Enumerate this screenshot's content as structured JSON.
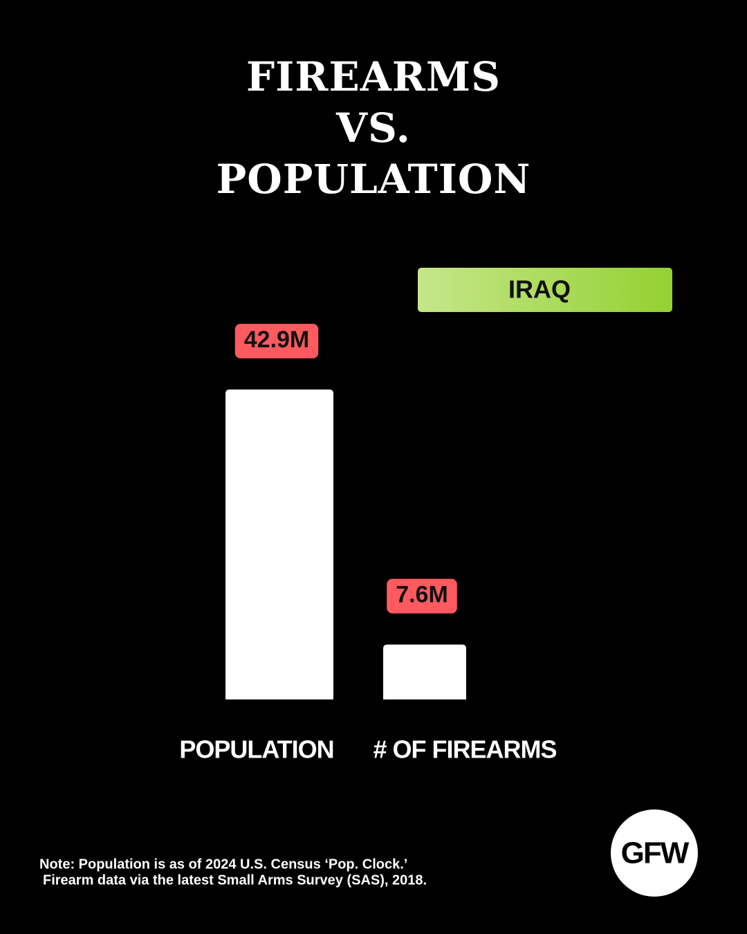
{
  "chart_data": {
    "type": "bar",
    "title": "FIREARMS\nVS.\nPOPULATION",
    "badge": "IRAQ",
    "categories": [
      "POPULATION",
      "# OF FIREARMS"
    ],
    "values": [
      42.9,
      7.6
    ],
    "value_labels": [
      "42.9M",
      "7.6M"
    ],
    "color": "#ffffff",
    "label_color": "#ff5a5f",
    "notes": [
      "Note: Population is as of 2024 U.S. Census ‘Pop. Clock.’",
      "Firearm data via the latest Small Arms Survey (SAS), 2018."
    ],
    "logo": "GFW"
  }
}
